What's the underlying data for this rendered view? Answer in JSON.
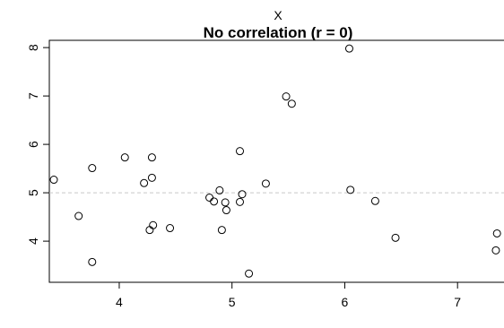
{
  "chart_data": {
    "type": "scatter",
    "title": "No correlation (r = 0)",
    "xlabel": "X",
    "ylabel": "",
    "xlim": [
      3.38,
      7.42
    ],
    "ylim": [
      3.15,
      8.15
    ],
    "xticks": [
      4,
      5,
      6,
      7
    ],
    "yticks": [
      4,
      5,
      6,
      7,
      8
    ],
    "reference_line_y": 5,
    "reference_line_color": "#c8c8c8",
    "point_color": "#000000",
    "points": [
      {
        "x": 3.42,
        "y": 5.27
      },
      {
        "x": 3.64,
        "y": 4.52
      },
      {
        "x": 3.76,
        "y": 5.51
      },
      {
        "x": 3.76,
        "y": 3.57
      },
      {
        "x": 4.05,
        "y": 5.73
      },
      {
        "x": 4.22,
        "y": 5.2
      },
      {
        "x": 4.27,
        "y": 4.23
      },
      {
        "x": 4.29,
        "y": 5.73
      },
      {
        "x": 4.29,
        "y": 5.31
      },
      {
        "x": 4.3,
        "y": 4.33
      },
      {
        "x": 4.45,
        "y": 4.27
      },
      {
        "x": 4.8,
        "y": 4.9
      },
      {
        "x": 4.84,
        "y": 4.82
      },
      {
        "x": 4.89,
        "y": 5.05
      },
      {
        "x": 4.91,
        "y": 4.23
      },
      {
        "x": 4.94,
        "y": 4.8
      },
      {
        "x": 4.95,
        "y": 4.64
      },
      {
        "x": 5.07,
        "y": 5.86
      },
      {
        "x": 5.07,
        "y": 4.81
      },
      {
        "x": 5.09,
        "y": 4.97
      },
      {
        "x": 5.15,
        "y": 3.33
      },
      {
        "x": 5.3,
        "y": 5.19
      },
      {
        "x": 5.48,
        "y": 6.99
      },
      {
        "x": 5.53,
        "y": 6.84
      },
      {
        "x": 6.04,
        "y": 7.98
      },
      {
        "x": 6.05,
        "y": 5.06
      },
      {
        "x": 6.27,
        "y": 4.83
      },
      {
        "x": 6.45,
        "y": 4.07
      },
      {
        "x": 7.34,
        "y": 3.81
      },
      {
        "x": 7.35,
        "y": 4.16
      }
    ]
  }
}
